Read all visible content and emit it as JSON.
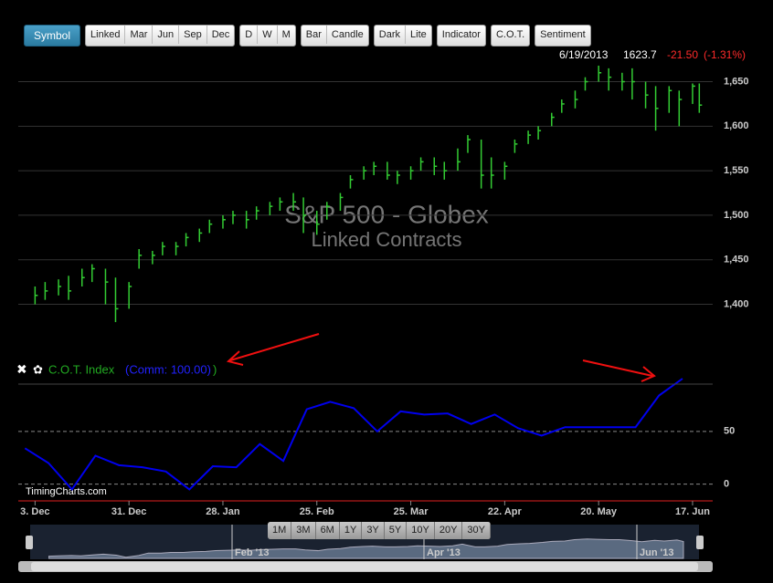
{
  "chart_data": [
    {
      "type": "ohlc",
      "title": "S&P 500 - Globex",
      "subtitle": "Linked Contracts",
      "color": "#33cc33",
      "x": [
        "2012-12-03",
        "2012-12-06",
        "2012-12-10",
        "2012-12-13",
        "2012-12-17",
        "2012-12-20",
        "2012-12-24",
        "2012-12-27",
        "2012-12-31",
        "2013-01-03",
        "2013-01-07",
        "2013-01-10",
        "2013-01-14",
        "2013-01-17",
        "2013-01-21",
        "2013-01-24",
        "2013-01-28",
        "2013-01-31",
        "2013-02-04",
        "2013-02-07",
        "2013-02-11",
        "2013-02-14",
        "2013-02-18",
        "2013-02-21",
        "2013-02-25",
        "2013-02-28",
        "2013-03-04",
        "2013-03-07",
        "2013-03-11",
        "2013-03-14",
        "2013-03-18",
        "2013-03-21",
        "2013-03-25",
        "2013-03-28",
        "2013-04-01",
        "2013-04-04",
        "2013-04-08",
        "2013-04-11",
        "2013-04-15",
        "2013-04-18",
        "2013-04-22",
        "2013-04-25",
        "2013-04-29",
        "2013-05-02",
        "2013-05-06",
        "2013-05-09",
        "2013-05-13",
        "2013-05-16",
        "2013-05-20",
        "2013-05-23",
        "2013-05-27",
        "2013-05-30",
        "2013-06-03",
        "2013-06-06",
        "2013-06-10",
        "2013-06-13",
        "2013-06-17",
        "2013-06-19"
      ],
      "high": [
        1420,
        1425,
        1428,
        1432,
        1440,
        1445,
        1440,
        1430,
        1425,
        1462,
        1460,
        1470,
        1470,
        1480,
        1485,
        1495,
        1500,
        1505,
        1505,
        1510,
        1515,
        1520,
        1525,
        1520,
        1505,
        1515,
        1525,
        1545,
        1555,
        1560,
        1560,
        1550,
        1555,
        1565,
        1565,
        1560,
        1575,
        1590,
        1585,
        1565,
        1560,
        1585,
        1595,
        1600,
        1615,
        1630,
        1640,
        1655,
        1668,
        1665,
        1660,
        1665,
        1650,
        1645,
        1645,
        1640,
        1648,
        1648
      ],
      "low": [
        1400,
        1405,
        1410,
        1405,
        1420,
        1425,
        1400,
        1380,
        1395,
        1440,
        1445,
        1455,
        1455,
        1465,
        1470,
        1480,
        1485,
        1490,
        1485,
        1495,
        1500,
        1505,
        1505,
        1480,
        1478,
        1495,
        1505,
        1530,
        1540,
        1545,
        1540,
        1535,
        1540,
        1550,
        1545,
        1540,
        1550,
        1570,
        1530,
        1530,
        1540,
        1570,
        1580,
        1585,
        1600,
        1615,
        1620,
        1640,
        1650,
        1640,
        1640,
        1630,
        1620,
        1595,
        1615,
        1600,
        1625,
        1615
      ],
      "close": [
        1410,
        1415,
        1420,
        1415,
        1430,
        1440,
        1425,
        1395,
        1420,
        1455,
        1455,
        1465,
        1465,
        1475,
        1480,
        1490,
        1495,
        1500,
        1495,
        1505,
        1510,
        1515,
        1515,
        1500,
        1490,
        1510,
        1520,
        1540,
        1550,
        1555,
        1545,
        1545,
        1550,
        1560,
        1555,
        1550,
        1560,
        1585,
        1545,
        1545,
        1555,
        1580,
        1590,
        1595,
        1610,
        1625,
        1630,
        1650,
        1660,
        1655,
        1650,
        1650,
        1635,
        1620,
        1640,
        1630,
        1645,
        1623.7
      ],
      "xlim": [
        "2012-11-28",
        "2013-06-23"
      ],
      "ylim": [
        1378,
        1670
      ],
      "yticks": [
        {
          "value": 1400,
          "label": "1,400"
        },
        {
          "value": 1450,
          "label": "1,450"
        },
        {
          "value": 1500,
          "label": "1,500"
        },
        {
          "value": 1550,
          "label": "1,550"
        },
        {
          "value": 1600,
          "label": "1,600"
        },
        {
          "value": 1650,
          "label": "1,650"
        }
      ],
      "grid": true,
      "quote": {
        "date": "6/19/2013",
        "values": [
          1623.7,
          -21.5,
          -1.31
        ],
        "value_labels": [
          "1623.7",
          "-21.50",
          "(-1.31%)"
        ]
      }
    },
    {
      "type": "line",
      "title": "C.O.T. Index",
      "legend_label": "(Comm: 100.00)",
      "legend_value": 100,
      "x": [
        "2012-11-30",
        "2012-12-07",
        "2012-12-14",
        "2012-12-21",
        "2012-12-28",
        "2013-01-04",
        "2013-01-11",
        "2013-01-18",
        "2013-01-25",
        "2013-02-01",
        "2013-02-08",
        "2013-02-15",
        "2013-02-22",
        "2013-03-01",
        "2013-03-08",
        "2013-03-15",
        "2013-03-22",
        "2013-03-29",
        "2013-04-05",
        "2013-04-12",
        "2013-04-19",
        "2013-04-26",
        "2013-05-03",
        "2013-05-10",
        "2013-05-17",
        "2013-05-24",
        "2013-05-31",
        "2013-06-07",
        "2013-06-14"
      ],
      "series": [
        {
          "name": "Comm",
          "color": "#0000ee",
          "values": [
            34,
            20,
            -5,
            27,
            18,
            16,
            12,
            -5,
            17,
            16,
            38,
            22,
            71,
            78,
            72,
            50,
            69,
            66,
            67,
            57,
            66,
            53,
            46,
            54,
            54,
            54,
            54,
            84,
            100
          ]
        }
      ],
      "xlim": [
        "2012-11-28",
        "2013-06-23"
      ],
      "xticks": [
        {
          "value": "2012-12-03",
          "label": "3. Dec"
        },
        {
          "value": "2012-12-31",
          "label": "31. Dec"
        },
        {
          "value": "2013-01-28",
          "label": "28. Jan"
        },
        {
          "value": "2013-02-25",
          "label": "25. Feb"
        },
        {
          "value": "2013-03-25",
          "label": "25. Mar"
        },
        {
          "value": "2013-04-22",
          "label": "22. Apr"
        },
        {
          "value": "2013-05-20",
          "label": "20. May"
        },
        {
          "value": "2013-06-17",
          "label": "17. Jun"
        }
      ],
      "ylim": [
        -15,
        100
      ],
      "yticks": [
        0,
        50
      ],
      "grid": true
    }
  ],
  "ui": {
    "toolbar": [
      [
        "Symbol"
      ],
      [
        "Linked",
        "Mar",
        "Jun",
        "Sep",
        "Dec"
      ],
      [
        "D",
        "W",
        "M"
      ],
      [
        "Bar",
        "Candle"
      ],
      [
        "Dark",
        "Lite"
      ],
      [
        "Indicator"
      ],
      [
        "C.O.T."
      ],
      [
        "Sentiment"
      ]
    ],
    "ranges": [
      "1M",
      "3M",
      "6M",
      "1Y",
      "3Y",
      "5Y",
      "10Y",
      "20Y",
      "30Y"
    ],
    "navigator_labels": [
      "Feb '13",
      "Apr '13",
      "Jun '13"
    ],
    "credit": "TimingCharts.com"
  }
}
